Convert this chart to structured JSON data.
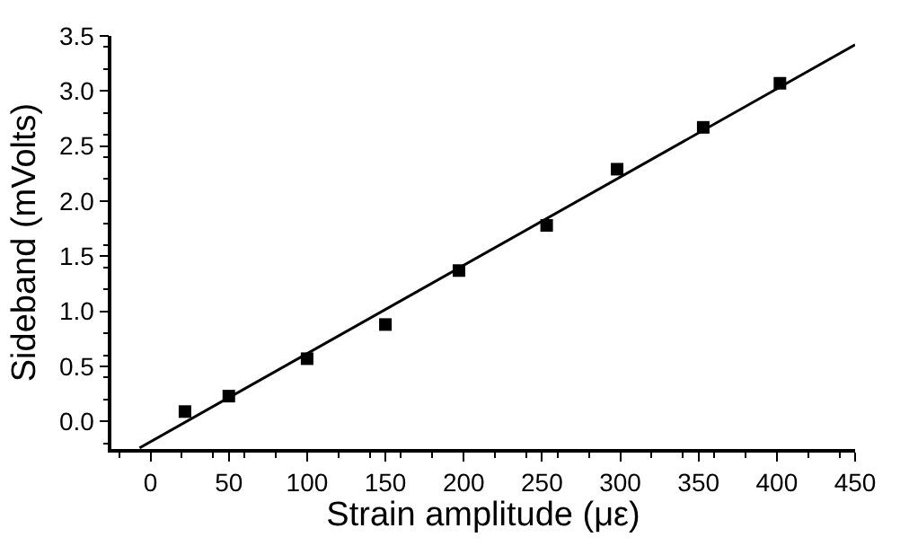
{
  "chart_data": {
    "type": "scatter",
    "xlabel": "Strain amplitude (με)",
    "ylabel": "Sideband (mVolts)",
    "xlim": [
      -25,
      450
    ],
    "xticks": [
      0,
      50,
      100,
      150,
      200,
      250,
      300,
      350,
      400,
      450
    ],
    "ylim": [
      -0.25,
      3.5
    ],
    "yticks": [
      {
        "value": 0,
        "label": "0.0"
      },
      0.5,
      {
        "value": 1,
        "label": "1.0"
      },
      1.5,
      {
        "value": 2,
        "label": "2.0"
      },
      2.5,
      {
        "value": 3,
        "label": "3.0"
      },
      3.5
    ],
    "series": [
      {
        "color": "#000000",
        "marker": "square",
        "x": [
          22,
          50,
          100,
          150,
          197,
          253,
          298,
          353,
          402
        ],
        "values": [
          0.09,
          0.23,
          0.57,
          0.88,
          1.37,
          1.78,
          2.29,
          2.67,
          3.07
        ]
      },
      {
        "type": "line",
        "color": "#000000",
        "x": [
          -7,
          450
        ],
        "values": [
          -0.24,
          3.42
        ]
      }
    ]
  }
}
